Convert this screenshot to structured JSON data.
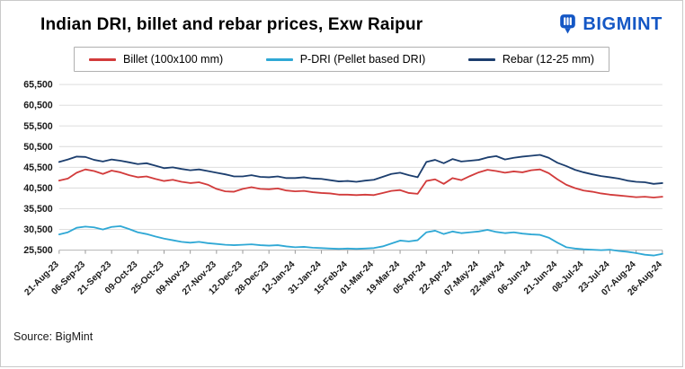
{
  "title": "Indian DRI, billet and rebar prices, Exw Raipur",
  "logo": {
    "text": "BIGMINT",
    "color": "#1457c5"
  },
  "source": "Source: BigMint",
  "chart_data": {
    "type": "line",
    "title": "Indian DRI, billet and rebar prices, Exw Raipur",
    "xlabel": "",
    "ylabel": "",
    "ylim": [
      25500,
      65500
    ],
    "grid": "horizontal",
    "legend_position": "top",
    "ytick_values": [
      25500,
      30500,
      35500,
      40500,
      45500,
      50500,
      55500,
      60500,
      65500
    ],
    "ytick_labels": [
      "25,500",
      "30,500",
      "35,500",
      "40,500",
      "45,500",
      "50,500",
      "55,500",
      "60,500",
      "65,500"
    ],
    "categories": [
      "21-Aug-23",
      "06-Sep-23",
      "21-Sep-23",
      "09-Oct-23",
      "25-Oct-23",
      "09-Nov-23",
      "27-Nov-23",
      "12-Dec-23",
      "28-Dec-23",
      "12-Jan-24",
      "31-Jan-24",
      "15-Feb-24",
      "01-Mar-24",
      "19-Mar-24",
      "05-Apr-24",
      "22-Apr-24",
      "07-May-24",
      "22-May-24",
      "06-Jun-24",
      "21-Jun-24",
      "08-Jul-24",
      "23-Jul-24",
      "07-Aug-24",
      "26-Aug-24"
    ],
    "series": [
      {
        "name": "Billet (100x100 mm)",
        "color": "#d23b3b",
        "values": [
          42300,
          42800,
          44200,
          45000,
          44600,
          43900,
          44700,
          44300,
          43600,
          43100,
          43300,
          42700,
          42200,
          42500,
          42000,
          41700,
          41900,
          41300,
          40300,
          39700,
          39600,
          40300,
          40700,
          40300,
          40200,
          40400,
          39900,
          39700,
          39800,
          39500,
          39300,
          39200,
          38900,
          38900,
          38800,
          38900,
          38800,
          39300,
          39800,
          40000,
          39300,
          39100,
          42200,
          42600,
          41500,
          42900,
          42400,
          43400,
          44300,
          44900,
          44600,
          44200,
          44500,
          44300,
          44800,
          45000,
          44100,
          42600,
          41300,
          40500,
          39900,
          39600,
          39200,
          38900,
          38700,
          38500,
          38300,
          38400,
          38200,
          38400
        ]
      },
      {
        "name": "P-DRI (Pellet based DRI)",
        "color": "#2fa8d5",
        "values": [
          29300,
          29800,
          30900,
          31200,
          31000,
          30500,
          31100,
          31300,
          30600,
          29800,
          29400,
          28800,
          28300,
          27900,
          27500,
          27300,
          27500,
          27200,
          27000,
          26800,
          26700,
          26800,
          26900,
          26700,
          26600,
          26700,
          26400,
          26200,
          26300,
          26100,
          26000,
          25900,
          25800,
          25900,
          25800,
          25900,
          26000,
          26400,
          27100,
          27800,
          27600,
          27900,
          29800,
          30200,
          29400,
          30000,
          29600,
          29800,
          30000,
          30400,
          29900,
          29600,
          29800,
          29500,
          29300,
          29200,
          28500,
          27300,
          26200,
          25900,
          25700,
          25600,
          25500,
          25600,
          25300,
          25100,
          24800,
          24400,
          24200,
          24600
        ]
      },
      {
        "name": "Rebar (12-25 mm)",
        "color": "#1c3e6e",
        "values": [
          46800,
          47400,
          48100,
          48000,
          47300,
          46900,
          47400,
          47100,
          46700,
          46300,
          46500,
          45900,
          45300,
          45500,
          45100,
          44800,
          45000,
          44600,
          44200,
          43800,
          43300,
          43300,
          43600,
          43200,
          43100,
          43300,
          42900,
          42900,
          43100,
          42800,
          42700,
          42400,
          42100,
          42200,
          42000,
          42300,
          42500,
          43200,
          43900,
          44200,
          43600,
          43100,
          46800,
          47300,
          46500,
          47500,
          46900,
          47100,
          47300,
          47900,
          48200,
          47400,
          47800,
          48100,
          48300,
          48500,
          47800,
          46600,
          45800,
          44900,
          44300,
          43800,
          43400,
          43100,
          42800,
          42300,
          42000,
          41900,
          41500,
          41700
        ]
      }
    ]
  }
}
